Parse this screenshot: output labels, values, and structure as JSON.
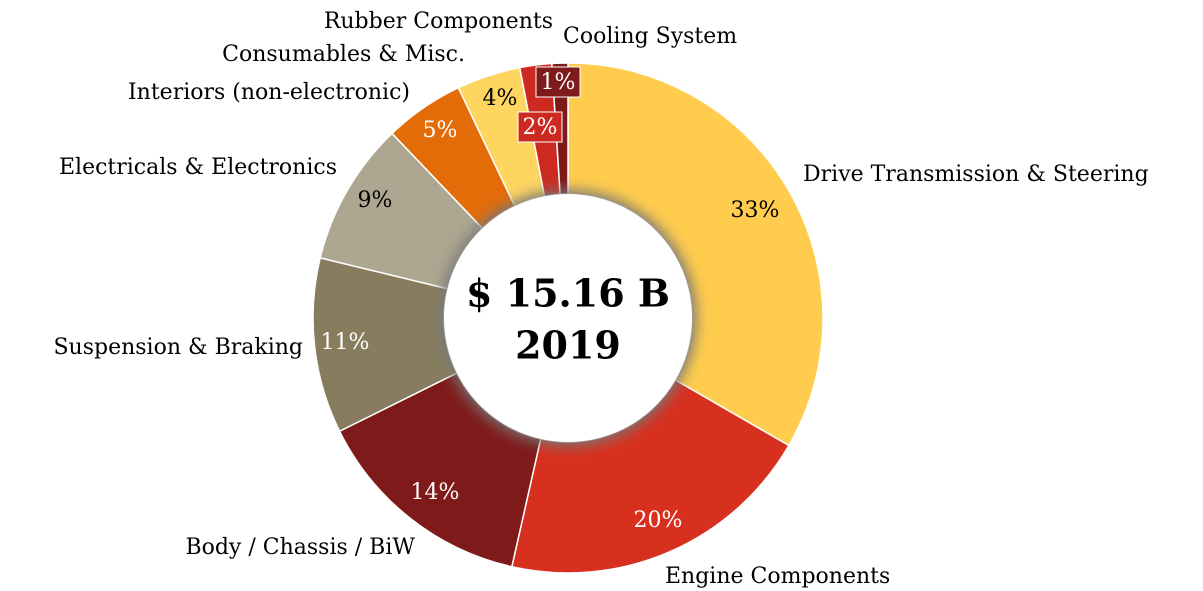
{
  "chart_data": {
    "type": "donut",
    "categories": [
      "Drive Transmission & Steering",
      "Engine Components",
      "Body / Chassis / BiW",
      "Suspension & Braking",
      "Electricals & Electronics",
      "Interiors (non-electronic)",
      "Consumables & Misc.",
      "Rubber Components",
      "Cooling System"
    ],
    "values": [
      33,
      20,
      14,
      11,
      9,
      5,
      4,
      2,
      1
    ],
    "value_labels": [
      "33%",
      "20%",
      "14%",
      "11%",
      "9%",
      "5%",
      "4%",
      "2%",
      "1%"
    ],
    "colors": [
      "#ffcc4d",
      "#d7301f",
      "#7f1a1a",
      "#877d5e",
      "#ada690",
      "#e36c09",
      "#fdd55f",
      "#cc2a20",
      "#7f1a1a"
    ],
    "center_text": [
      "$ 15.16 B",
      "2019"
    ]
  }
}
